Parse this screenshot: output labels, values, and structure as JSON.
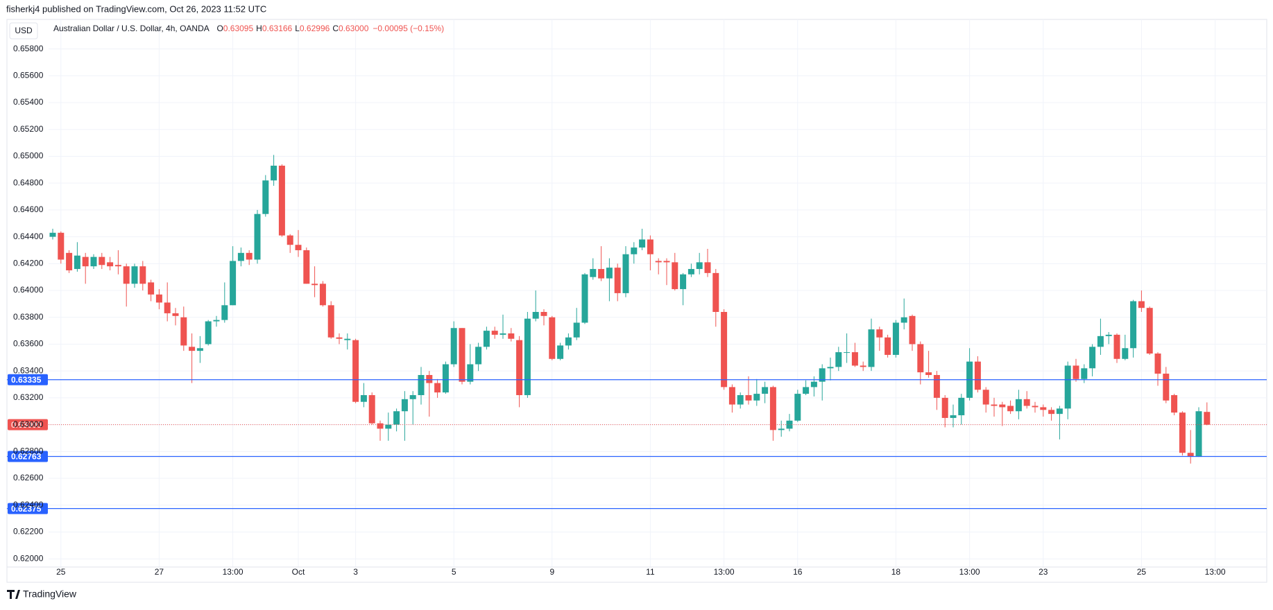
{
  "header": {
    "published": "fisherkj4 published on TradingView.com, Oct 26, 2023 11:52 UTC",
    "footer": "TradingView"
  },
  "chart_data": {
    "type": "candlestick",
    "currency": "USD",
    "title": "Australian Dollar / U.S. Dollar, 4h, OANDA",
    "ohlc_legend": [
      {
        "key": "O",
        "value": "0.63095"
      },
      {
        "key": "H",
        "value": "0.63166"
      },
      {
        "key": "L",
        "value": "0.62996"
      },
      {
        "key": "C",
        "value": "0.63000"
      }
    ],
    "change": "−0.00095 (−0.15%)",
    "up_color": "#26a69a",
    "down_color": "#ef5350",
    "grid": true,
    "ylim": [
      0.6197,
      0.6602
    ],
    "yticks": [
      {
        "value": 0.62,
        "label": "0.62000"
      },
      {
        "value": 0.622,
        "label": "0.62200"
      },
      {
        "value": 0.624,
        "label": "0.62400"
      },
      {
        "value": 0.626,
        "label": "0.62600"
      },
      {
        "value": 0.628,
        "label": "0.62800"
      },
      {
        "value": 0.63,
        "label": "0.63000"
      },
      {
        "value": 0.632,
        "label": "0.63200"
      },
      {
        "value": 0.634,
        "label": "0.63400"
      },
      {
        "value": 0.636,
        "label": "0.63600"
      },
      {
        "value": 0.638,
        "label": "0.63800"
      },
      {
        "value": 0.64,
        "label": "0.64000"
      },
      {
        "value": 0.642,
        "label": "0.64200"
      },
      {
        "value": 0.644,
        "label": "0.64400"
      },
      {
        "value": 0.646,
        "label": "0.64600"
      },
      {
        "value": 0.648,
        "label": "0.64800"
      },
      {
        "value": 0.65,
        "label": "0.65000"
      },
      {
        "value": 0.652,
        "label": "0.65200"
      },
      {
        "value": 0.654,
        "label": "0.65400"
      },
      {
        "value": 0.656,
        "label": "0.65600"
      },
      {
        "value": 0.658,
        "label": "0.65800"
      }
    ],
    "price_lines": [
      {
        "value": 0.63335,
        "color": "#2962ff"
      },
      {
        "value": 0.62763,
        "color": "#2962ff"
      },
      {
        "value": 0.62375,
        "color": "#2962ff"
      }
    ],
    "last_price": {
      "value": 0.63,
      "label": "0.63000",
      "color": "#ef5350"
    },
    "categories": [
      null,
      "25",
      null,
      null,
      null,
      null,
      null,
      null,
      null,
      null,
      null,
      null,
      null,
      "27",
      null,
      null,
      null,
      null,
      null,
      null,
      null,
      null,
      "13:00",
      null,
      null,
      null,
      null,
      null,
      null,
      null,
      "Oct",
      null,
      null,
      null,
      null,
      null,
      null,
      "3",
      null,
      null,
      null,
      null,
      null,
      null,
      null,
      null,
      null,
      null,
      null,
      "5",
      null,
      null,
      null,
      null,
      null,
      null,
      null,
      null,
      null,
      null,
      null,
      "9",
      null,
      null,
      null,
      null,
      null,
      null,
      null,
      null,
      null,
      null,
      null,
      "11",
      null,
      null,
      null,
      null,
      null,
      null,
      null,
      null,
      "13:00",
      null,
      null,
      null,
      null,
      null,
      null,
      null,
      null,
      "16",
      null,
      null,
      null,
      null,
      null,
      null,
      null,
      null,
      null,
      null,
      null,
      "18",
      null,
      null,
      null,
      null,
      null,
      null,
      null,
      null,
      "13:00",
      null,
      null,
      null,
      null,
      null,
      null,
      null,
      null,
      "23",
      null,
      null,
      null,
      null,
      null,
      null,
      null,
      null,
      null,
      null,
      null,
      "25",
      null,
      null,
      null,
      null,
      null,
      null,
      null,
      null,
      "13:00"
    ],
    "open": [
      0.644,
      0.6443,
      0.6428,
      0.6416,
      0.6425,
      0.6418,
      0.6425,
      0.6421,
      0.6419,
      0.6418,
      0.6405,
      0.6418,
      0.6406,
      0.6397,
      0.6391,
      0.6383,
      0.638,
      0.6358,
      0.6355,
      0.636,
      0.6377,
      0.6378,
      0.6389,
      0.6422,
      0.6428,
      0.6423,
      0.6457,
      0.6482,
      0.6493,
      0.6441,
      0.6434,
      0.643,
      0.6405,
      0.6405,
      0.6389,
      0.6365,
      0.6363,
      0.6363,
      0.6317,
      0.6322,
      0.6301,
      0.6297,
      0.63,
      0.631,
      0.6319,
      0.6322,
      0.6337,
      0.6331,
      0.6324,
      0.6345,
      0.6372,
      0.6332,
      0.6345,
      0.6358,
      0.637,
      0.6367,
      0.6368,
      0.6363,
      0.6322,
      0.6379,
      0.6384,
      0.638,
      0.6349,
      0.6359,
      0.6365,
      0.6376,
      0.641,
      0.6416,
      0.6409,
      0.6417,
      0.6398,
      0.6427,
      0.6432,
      0.6438,
      0.6422,
      0.6422,
      0.6421,
      0.6401,
      0.6412,
      0.6416,
      0.6421,
      0.6413,
      0.6384,
      0.6328,
      0.6315,
      0.6322,
      0.6318,
      0.6323,
      0.6328,
      0.6296,
      0.6297,
      0.6303,
      0.6323,
      0.6328,
      0.6332,
      0.6342,
      0.6343,
      0.6354,
      0.6354,
      0.6344,
      0.6343,
      0.6371,
      0.6365,
      0.6352,
      0.6376,
      0.6381,
      0.636,
      0.6339,
      0.6337,
      0.632,
      0.6305,
      0.6307,
      0.632,
      0.6347,
      0.6326,
      0.6315,
      0.6315,
      0.6314,
      0.631,
      0.6319,
      0.6314,
      0.6313,
      0.6311,
      0.6308,
      0.6312,
      0.6344,
      0.6334,
      0.6342,
      0.6358,
      0.6366,
      0.6367,
      0.6349,
      0.6357,
      0.6392,
      0.6387,
      0.6353,
      0.6338,
      0.6322,
      0.6309,
      0.6279,
      0.6276,
      0.63095,
      null
    ],
    "high": [
      0.6446,
      0.6444,
      0.643,
      0.6436,
      0.6428,
      0.6427,
      0.6428,
      0.6425,
      0.643,
      0.642,
      0.642,
      0.6422,
      0.6408,
      0.6401,
      0.6406,
      0.6387,
      0.6388,
      0.6368,
      0.6366,
      0.6378,
      0.6381,
      0.6406,
      0.6433,
      0.6432,
      0.643,
      0.646,
      0.6486,
      0.6501,
      0.6494,
      0.6442,
      0.6445,
      0.6432,
      0.6418,
      0.6407,
      0.6392,
      0.6368,
      0.6368,
      0.6364,
      0.6331,
      0.6324,
      0.6303,
      0.6309,
      0.6312,
      0.6325,
      0.6325,
      0.6343,
      0.634,
      0.6334,
      0.6347,
      0.6377,
      0.6372,
      0.636,
      0.6361,
      0.6373,
      0.6373,
      0.6382,
      0.6372,
      0.6366,
      0.6384,
      0.64,
      0.6386,
      0.6381,
      0.6361,
      0.6368,
      0.6387,
      0.6413,
      0.6424,
      0.6433,
      0.6424,
      0.642,
      0.6433,
      0.6436,
      0.6446,
      0.6441,
      0.6424,
      0.6424,
      0.6428,
      0.6413,
      0.642,
      0.6428,
      0.6431,
      0.6416,
      0.6386,
      0.633,
      0.6324,
      0.6336,
      0.6334,
      0.6332,
      0.6329,
      0.6303,
      0.6308,
      0.6326,
      0.6333,
      0.6336,
      0.6345,
      0.635,
      0.6358,
      0.6368,
      0.6361,
      0.6347,
      0.6379,
      0.6373,
      0.6367,
      0.6378,
      0.6394,
      0.6382,
      0.6362,
      0.6355,
      0.634,
      0.6322,
      0.6315,
      0.6323,
      0.6357,
      0.6351,
      0.6328,
      0.632,
      0.6317,
      0.6318,
      0.6326,
      0.6325,
      0.6317,
      0.6315,
      0.6313,
      0.6314,
      0.6347,
      0.6349,
      0.6345,
      0.636,
      0.6379,
      0.6369,
      0.6368,
      0.6367,
      0.6393,
      0.64,
      0.6388,
      0.6354,
      0.6343,
      0.6323,
      0.631,
      0.6296,
      0.6313,
      0.63166,
      null
    ],
    "low": [
      0.6438,
      0.642,
      0.6413,
      0.6414,
      0.6405,
      0.6416,
      0.6416,
      0.6415,
      0.6412,
      0.6388,
      0.6402,
      0.64,
      0.6392,
      0.6386,
      0.6377,
      0.6374,
      0.6355,
      0.6331,
      0.6346,
      0.6359,
      0.6373,
      0.6376,
      0.6389,
      0.6418,
      0.6419,
      0.642,
      0.6455,
      0.6478,
      0.644,
      0.6428,
      0.6425,
      0.6405,
      0.6395,
      0.6388,
      0.6364,
      0.636,
      0.6356,
      0.6316,
      0.6313,
      0.63,
      0.6288,
      0.6288,
      0.6295,
      0.6288,
      0.63,
      0.6315,
      0.6306,
      0.632,
      0.6323,
      0.6343,
      0.633,
      0.633,
      0.634,
      0.6356,
      0.6364,
      0.6364,
      0.6362,
      0.6313,
      0.632,
      0.6377,
      0.6374,
      0.6348,
      0.6348,
      0.6356,
      0.6363,
      0.6375,
      0.6408,
      0.6407,
      0.6392,
      0.6392,
      0.6395,
      0.642,
      0.643,
      0.6415,
      0.6412,
      0.6404,
      0.64,
      0.6389,
      0.641,
      0.6412,
      0.641,
      0.6373,
      0.6326,
      0.6309,
      0.6312,
      0.6315,
      0.6314,
      0.6316,
      0.6288,
      0.6291,
      0.6295,
      0.6302,
      0.6322,
      0.6321,
      0.6318,
      0.6333,
      0.634,
      0.6346,
      0.6343,
      0.634,
      0.634,
      0.6355,
      0.635,
      0.635,
      0.6371,
      0.6355,
      0.633,
      0.6335,
      0.6311,
      0.6298,
      0.6298,
      0.63,
      0.6318,
      0.6324,
      0.6309,
      0.6306,
      0.6299,
      0.6308,
      0.6304,
      0.6312,
      0.6309,
      0.6306,
      0.6303,
      0.6289,
      0.6304,
      0.6332,
      0.6331,
      0.6336,
      0.6352,
      0.636,
      0.6346,
      0.6348,
      0.635,
      0.6384,
      0.6352,
      0.6329,
      0.6316,
      0.6307,
      0.6277,
      0.6271,
      0.6276,
      0.62996,
      null
    ],
    "close": [
      0.6443,
      0.6423,
      0.6415,
      0.6426,
      0.6418,
      0.6425,
      0.6419,
      0.6418,
      0.6418,
      0.6405,
      0.6418,
      0.6405,
      0.6397,
      0.6391,
      0.6383,
      0.6381,
      0.6359,
      0.6355,
      0.6357,
      0.6377,
      0.6378,
      0.6389,
      0.6422,
      0.6428,
      0.6423,
      0.6457,
      0.6482,
      0.6493,
      0.6441,
      0.6434,
      0.643,
      0.6405,
      0.6404,
      0.6389,
      0.6365,
      0.6364,
      0.6364,
      0.6317,
      0.6322,
      0.6301,
      0.6297,
      0.63,
      0.631,
      0.6319,
      0.6322,
      0.6337,
      0.6331,
      0.6324,
      0.6345,
      0.6372,
      0.6332,
      0.6345,
      0.6358,
      0.637,
      0.6367,
      0.6368,
      0.6364,
      0.6322,
      0.6379,
      0.6384,
      0.6381,
      0.6349,
      0.6359,
      0.6365,
      0.6376,
      0.6412,
      0.6416,
      0.6409,
      0.6417,
      0.6398,
      0.6427,
      0.6432,
      0.6438,
      0.6427,
      0.6421,
      0.6421,
      0.6401,
      0.6412,
      0.6416,
      0.6421,
      0.6413,
      0.6384,
      0.6328,
      0.6315,
      0.6322,
      0.6318,
      0.6323,
      0.6328,
      0.6296,
      0.6297,
      0.6303,
      0.6323,
      0.6328,
      0.6332,
      0.6342,
      0.6343,
      0.6354,
      0.6354,
      0.6344,
      0.6343,
      0.6371,
      0.6365,
      0.6352,
      0.6376,
      0.638,
      0.636,
      0.6339,
      0.6337,
      0.632,
      0.6305,
      0.6307,
      0.632,
      0.6347,
      0.6326,
      0.6315,
      0.6314,
      0.6313,
      0.631,
      0.6319,
      0.6314,
      0.6313,
      0.6311,
      0.6308,
      0.6312,
      0.6344,
      0.6334,
      0.6342,
      0.6358,
      0.6366,
      0.6367,
      0.6349,
      0.6357,
      0.6392,
      0.6387,
      0.6353,
      0.6338,
      0.6318,
      0.6309,
      0.6279,
      0.6276,
      0.631,
      0.63,
      null
    ]
  }
}
